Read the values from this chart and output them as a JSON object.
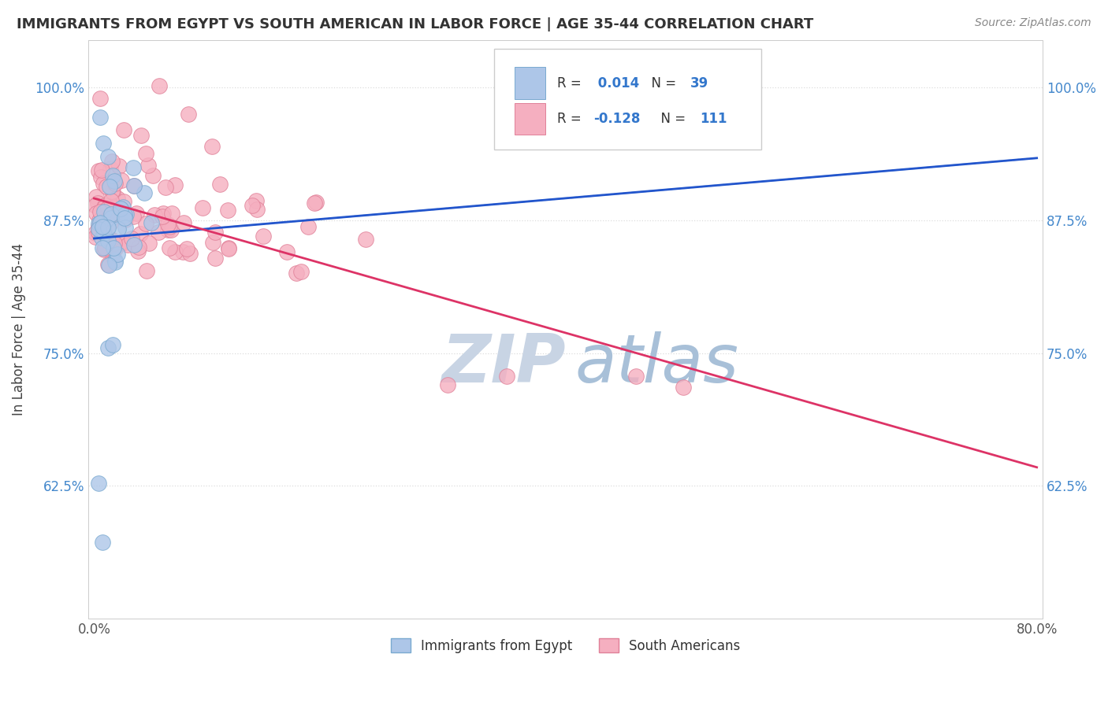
{
  "title": "IMMIGRANTS FROM EGYPT VS SOUTH AMERICAN IN LABOR FORCE | AGE 35-44 CORRELATION CHART",
  "source_text": "Source: ZipAtlas.com",
  "ylabel": "In Labor Force | Age 35-44",
  "xlim": [
    -0.005,
    0.805
  ],
  "ylim": [
    0.5,
    1.045
  ],
  "yticks": [
    0.625,
    0.75,
    0.875,
    1.0
  ],
  "ytick_labels": [
    "62.5%",
    "75.0%",
    "87.5%",
    "100.0%"
  ],
  "xticks": [
    0.0,
    0.1,
    0.2,
    0.3,
    0.4,
    0.5,
    0.6,
    0.7,
    0.8
  ],
  "xtick_labels": [
    "0.0%",
    "",
    "",
    "",
    "",
    "",
    "",
    "",
    "80.0%"
  ],
  "egypt_color": "#adc6e8",
  "egypt_edge_color": "#7aaad0",
  "south_color": "#f5afc0",
  "south_edge_color": "#e08098",
  "egypt_line_color": "#2255cc",
  "south_line_color": "#dd3366",
  "dashed_line_color": "#99bbdd",
  "R_egypt": 0.014,
  "N_egypt": 39,
  "R_south": -0.128,
  "N_south": 111,
  "watermark_ZI": "ZIP",
  "watermark_atlas": "atlas",
  "watermark_color_zi": "#c8d4e4",
  "watermark_color_atlas": "#a8c0d8",
  "background_color": "#ffffff",
  "legend_color_egypt": "#adc6e8",
  "legend_color_south": "#f5afc0",
  "legend_edge_egypt": "#7aaad0",
  "legend_edge_south": "#e08098",
  "grid_color": "#dddddd",
  "tick_label_color_y": "#4488cc",
  "tick_label_color_x": "#555555",
  "title_color": "#333333",
  "source_color": "#888888",
  "ylabel_color": "#444444"
}
